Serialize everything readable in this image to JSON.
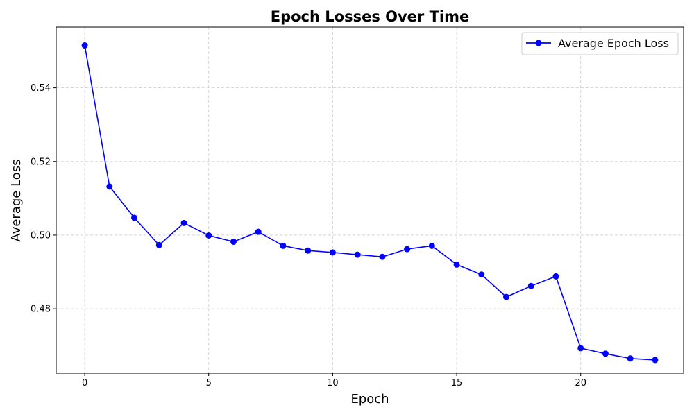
{
  "chart_data": {
    "type": "line",
    "title": "Epoch Losses Over Time",
    "xlabel": "Epoch",
    "ylabel": "Average Loss",
    "x": [
      0,
      1,
      2,
      3,
      4,
      5,
      6,
      7,
      8,
      9,
      10,
      11,
      12,
      13,
      14,
      15,
      16,
      17,
      18,
      19,
      20,
      21,
      22,
      23
    ],
    "series": [
      {
        "name": "Average Epoch Loss",
        "color": "#0000ff",
        "marker": "circle",
        "values": [
          0.5515,
          0.5132,
          0.5047,
          0.4973,
          0.5033,
          0.4999,
          0.4982,
          0.5009,
          0.4971,
          0.4958,
          0.4953,
          0.4947,
          0.4941,
          0.4962,
          0.4971,
          0.492,
          0.4893,
          0.4832,
          0.4862,
          0.4888,
          0.4693,
          0.4678,
          0.4665,
          0.4661
        ]
      }
    ],
    "xlim": [
      -1.15,
      24.15
    ],
    "ylim": [
      0.4625,
      0.5565
    ],
    "x_ticks": [
      0,
      5,
      10,
      15,
      20
    ],
    "x_tick_labels": [
      "0",
      "5",
      "10",
      "15",
      "20"
    ],
    "y_ticks": [
      0.48,
      0.5,
      0.52,
      0.54
    ],
    "y_tick_labels": [
      "0.48",
      "0.50",
      "0.52",
      "0.54"
    ],
    "grid": true,
    "grid_style": "dashed",
    "legend_position": "top-right"
  }
}
